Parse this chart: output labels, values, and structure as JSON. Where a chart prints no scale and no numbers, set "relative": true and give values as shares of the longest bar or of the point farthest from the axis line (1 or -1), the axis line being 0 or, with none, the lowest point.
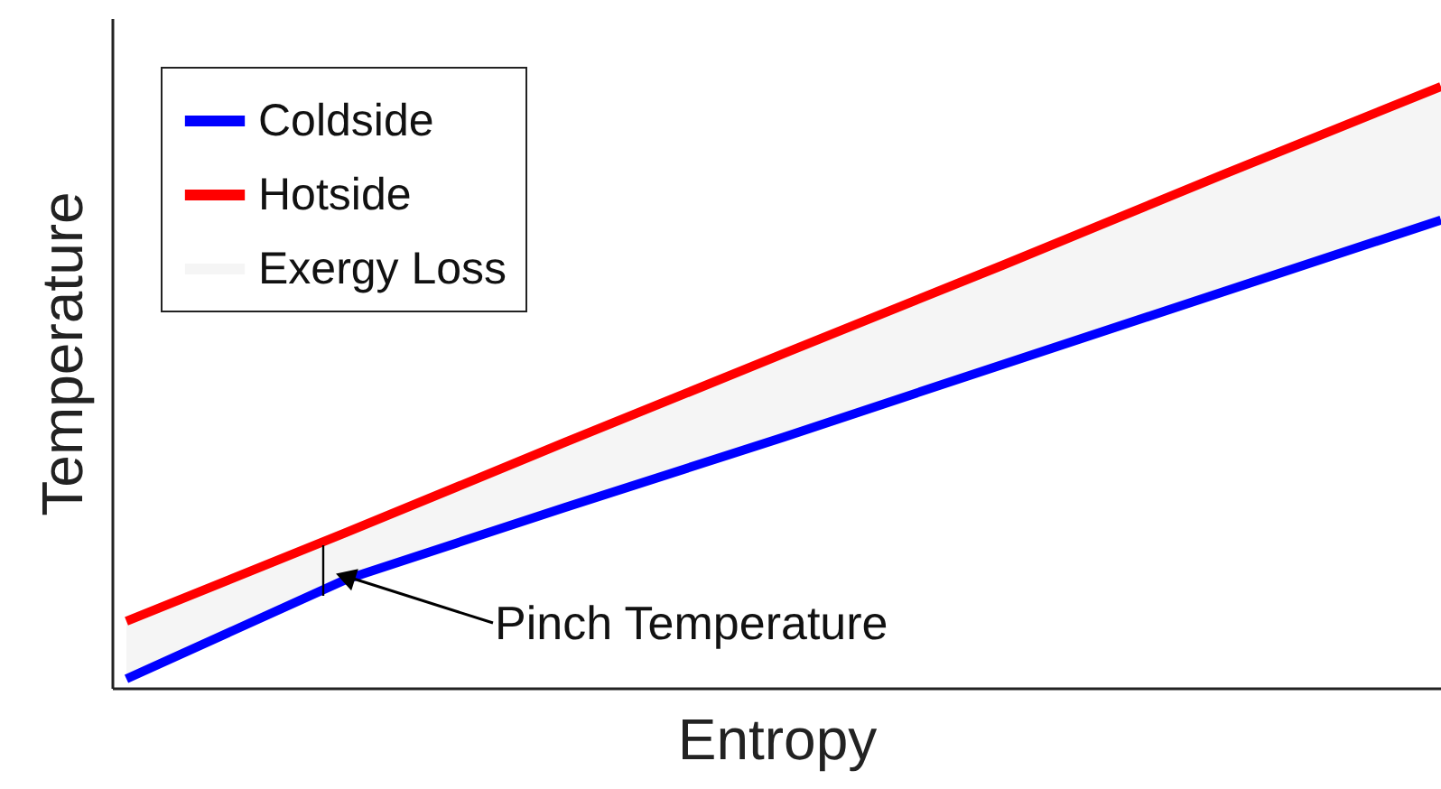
{
  "chart_data": {
    "type": "line",
    "relative": true,
    "xlabel": "Entropy",
    "ylabel": "Temperature",
    "categories": [
      null,
      null,
      null,
      null,
      null,
      null,
      null
    ],
    "series": [
      {
        "name": "Exergy Loss",
        "type": "area",
        "color": "#f5f5f5",
        "values": [
          null,
          null,
          null,
          null,
          null,
          null,
          null
        ]
      },
      {
        "name": "Coldside",
        "color": "#0000ff",
        "values": [
          0.015,
          0.18,
          0.3,
          0.417,
          0.538,
          0.658,
          0.778
        ]
      },
      {
        "name": "Hotside",
        "color": "#ff0000",
        "values": [
          0.111,
          0.258,
          0.408,
          0.556,
          0.703,
          0.853,
          1
        ],
        "lower": [
          0.015,
          0.18,
          0.3,
          0.417,
          0.538,
          0.658,
          0.778
        ],
        "upper": [
          0.111,
          0.258,
          0.408,
          0.556,
          0.703,
          0.853,
          1
        ]
      }
    ],
    "annotations": [
      "Pinch Temperature"
    ],
    "legend": "top left",
    "marker": "none",
    "line_style": "solid"
  }
}
